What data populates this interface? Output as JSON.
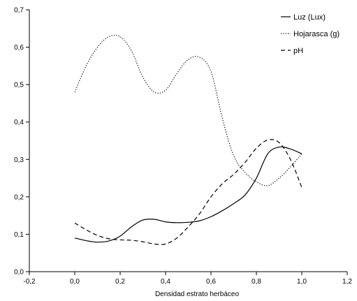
{
  "chart_data": {
    "type": "line",
    "title": "",
    "xlabel": "Densidad estrato herbáceo",
    "ylabel": "",
    "xlim": [
      -0.2,
      1.2
    ],
    "ylim": [
      0.0,
      0.7
    ],
    "x_ticks": [
      "-0,2",
      "0,0",
      "0,2",
      "0,4",
      "0,6",
      "0,8",
      "1,0",
      "1,2"
    ],
    "y_ticks": [
      "0,0",
      "0,1",
      "0,2",
      "0,3",
      "0,4",
      "0,5",
      "0,6",
      "0,7"
    ],
    "grid": false,
    "legend_position": "top-right",
    "series": [
      {
        "name": "Luz (Lux)",
        "style": "solid",
        "color": "#000000",
        "x": [
          0.0,
          0.05,
          0.1,
          0.15,
          0.2,
          0.25,
          0.3,
          0.35,
          0.4,
          0.45,
          0.5,
          0.55,
          0.6,
          0.65,
          0.7,
          0.75,
          0.8,
          0.85,
          0.9,
          0.95,
          1.0
        ],
        "y": [
          0.09,
          0.083,
          0.079,
          0.082,
          0.095,
          0.12,
          0.138,
          0.14,
          0.133,
          0.131,
          0.132,
          0.136,
          0.147,
          0.163,
          0.182,
          0.205,
          0.25,
          0.315,
          0.333,
          0.328,
          0.315
        ]
      },
      {
        "name": "Hojarasca (g)",
        "style": "dotted",
        "color": "#000000",
        "x": [
          0.0,
          0.05,
          0.1,
          0.15,
          0.2,
          0.25,
          0.3,
          0.35,
          0.4,
          0.45,
          0.5,
          0.55,
          0.6,
          0.65,
          0.7,
          0.75,
          0.8,
          0.85,
          0.9,
          0.95,
          1.0
        ],
        "y": [
          0.48,
          0.55,
          0.6,
          0.628,
          0.628,
          0.59,
          0.52,
          0.48,
          0.485,
          0.53,
          0.567,
          0.573,
          0.535,
          0.41,
          0.31,
          0.265,
          0.24,
          0.23,
          0.25,
          0.28,
          0.315
        ]
      },
      {
        "name": "pH",
        "style": "dashed",
        "color": "#000000",
        "x": [
          0.0,
          0.05,
          0.1,
          0.15,
          0.2,
          0.25,
          0.3,
          0.35,
          0.4,
          0.45,
          0.5,
          0.55,
          0.6,
          0.65,
          0.7,
          0.75,
          0.8,
          0.85,
          0.9,
          0.95,
          1.0
        ],
        "y": [
          0.13,
          0.112,
          0.097,
          0.088,
          0.085,
          0.084,
          0.08,
          0.074,
          0.074,
          0.09,
          0.12,
          0.155,
          0.2,
          0.235,
          0.26,
          0.292,
          0.33,
          0.352,
          0.345,
          0.3,
          0.225
        ]
      }
    ]
  }
}
